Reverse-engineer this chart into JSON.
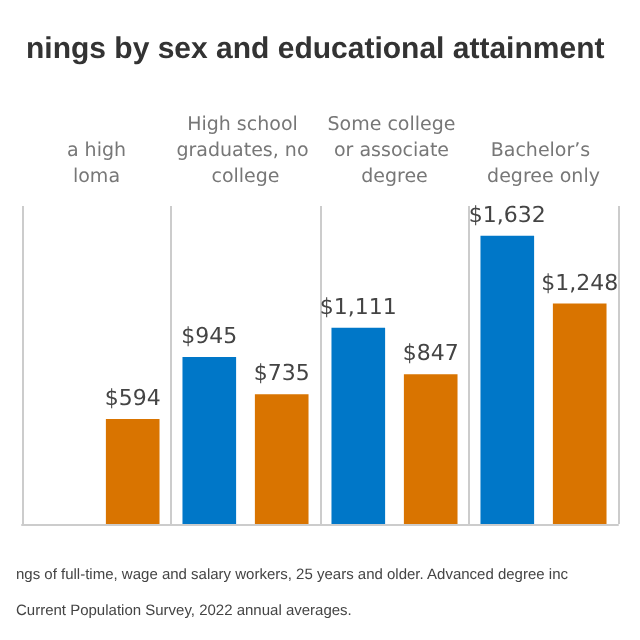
{
  "chart_data": {
    "type": "bar",
    "title": "nings by sex and educational attainment",
    "categories": [
      "a high\nloma",
      "High school graduates, no college",
      "Some college or associate degree",
      "Bachelor’s degree only"
    ],
    "series": [
      {
        "color": "#0077c8",
        "values": [
          null,
          945,
          1111,
          1632
        ],
        "value_labels": [
          null,
          "$945",
          "$1,111",
          "$1,632"
        ]
      },
      {
        "color": "#d97400",
        "values": [
          594,
          735,
          847,
          1248
        ],
        "value_labels": [
          "$594",
          "$735",
          "$847",
          "$1,248"
        ]
      }
    ],
    "grid": "x",
    "annotations": [
      "ngs of full-time, wage and salary workers, 25 years and older. Advanced degree inc",
      "Current Population Survey, 2022 annual averages."
    ]
  }
}
